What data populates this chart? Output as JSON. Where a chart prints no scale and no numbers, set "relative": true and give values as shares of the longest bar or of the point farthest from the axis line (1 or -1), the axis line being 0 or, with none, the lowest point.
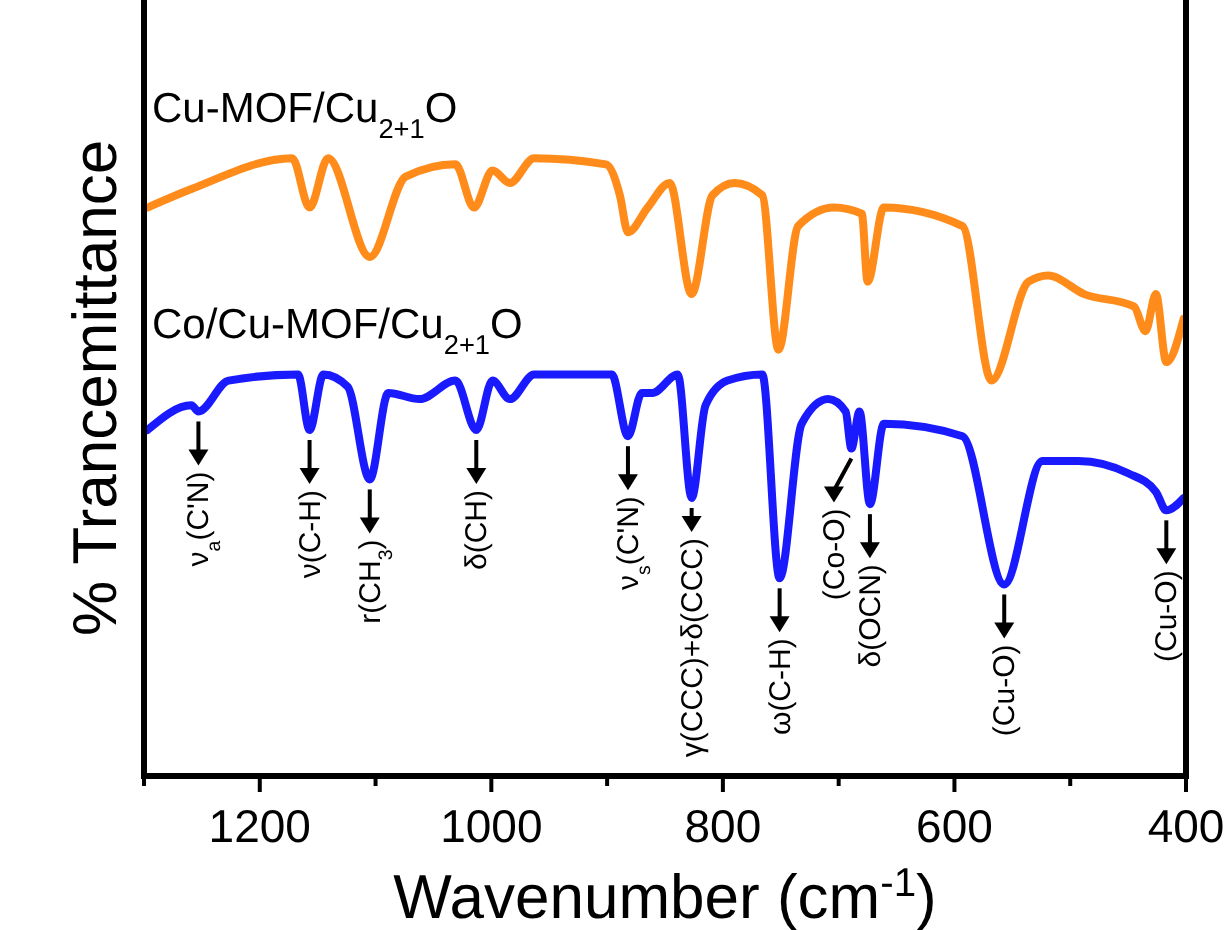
{
  "chart_data": {
    "type": "line",
    "relative": true,
    "xlabel": "Wavenumber (cm$^{-1}$)",
    "ylabel": "% Trancemittance",
    "xlim": [
      1300,
      400
    ],
    "xticks": [
      {
        "value": 1300,
        "label": null
      },
      1200,
      {
        "value": 1100,
        "label": null
      },
      1000,
      {
        "value": 900,
        "label": null
      },
      800,
      {
        "value": 700,
        "label": null
      },
      600,
      {
        "value": 500,
        "label": null
      },
      400
    ],
    "legend": false,
    "marker": "none",
    "line_style": "solid",
    "series": [
      {
        "name": "Cu-MOF/Cu$_{2+1}$O",
        "color": "#ff8c1a",
        "x": [
          1297,
          1259,
          1172,
          1157,
          1141,
          1105,
          1074,
          1031,
          1015,
          999,
          984,
          963,
          901,
          889,
          882,
          865,
          846,
          827,
          809,
          790,
          766,
          752,
          735,
          704,
          680,
          675,
          661,
          593,
          568,
          536,
          519,
          488,
          445,
          435,
          426,
          417,
          402
        ],
        "values": [
          0.92,
          0.95,
          1.0,
          0.92,
          1.0,
          0.84,
          0.97,
          0.99,
          0.92,
          0.98,
          0.96,
          1.0,
          0.99,
          0.94,
          0.88,
          0.92,
          0.96,
          0.78,
          0.94,
          0.96,
          0.94,
          0.69,
          0.89,
          0.92,
          0.91,
          0.8,
          0.92,
          0.89,
          0.64,
          0.8,
          0.81,
          0.78,
          0.76,
          0.72,
          0.78,
          0.67,
          0.74
        ]
      },
      {
        "name": "Co/Cu-MOF/Cu$_{2+1}$O",
        "color": "#1a1aff",
        "x": [
          1297,
          1259,
          1253,
          1227,
          1167,
          1157,
          1145,
          1124,
          1105,
          1089,
          1062,
          1031,
          1013,
          999,
          984,
          963,
          896,
          882,
          870,
          861,
          839,
          827,
          815,
          796,
          766,
          751,
          732,
          709,
          694,
          689,
          682,
          673,
          661,
          593,
          557,
          524,
          493,
          450,
          426,
          417,
          402
        ],
        "values": [
          0.56,
          0.6,
          0.59,
          0.64,
          0.65,
          0.56,
          0.65,
          0.63,
          0.48,
          0.62,
          0.61,
          0.64,
          0.56,
          0.64,
          0.61,
          0.65,
          0.65,
          0.55,
          0.62,
          0.62,
          0.65,
          0.45,
          0.6,
          0.64,
          0.65,
          0.32,
          0.57,
          0.61,
          0.59,
          0.53,
          0.59,
          0.44,
          0.57,
          0.55,
          0.31,
          0.51,
          0.51,
          0.49,
          0.46,
          0.43,
          0.45
        ]
      }
    ],
    "annotations": [
      {
        "text": "ν$_{a}$(C'N)",
        "x": 1253,
        "y": 0.59
      },
      {
        "text": "ν(C-H)",
        "x": 1157,
        "y": 0.56
      },
      {
        "text": "r(CH$_{3}$)",
        "x": 1105,
        "y": 0.48
      },
      {
        "text": "δ(CH)",
        "x": 1013,
        "y": 0.56
      },
      {
        "text": "ν$_{s}$(C'N)",
        "x": 882,
        "y": 0.55
      },
      {
        "text": "γ(CCC)+δ(CCC)",
        "x": 827,
        "y": 0.45
      },
      {
        "text": "ω(C-H)",
        "x": 751,
        "y": 0.32
      },
      {
        "text": "(Co-O)",
        "x": 689,
        "y": 0.53
      },
      {
        "text": "δ(OCN)",
        "x": 673,
        "y": 0.44
      },
      {
        "text": "(Cu-O)",
        "x": 557,
        "y": 0.31
      },
      {
        "text": "(Cu-O)",
        "x": 417,
        "y": 0.43
      }
    ]
  }
}
